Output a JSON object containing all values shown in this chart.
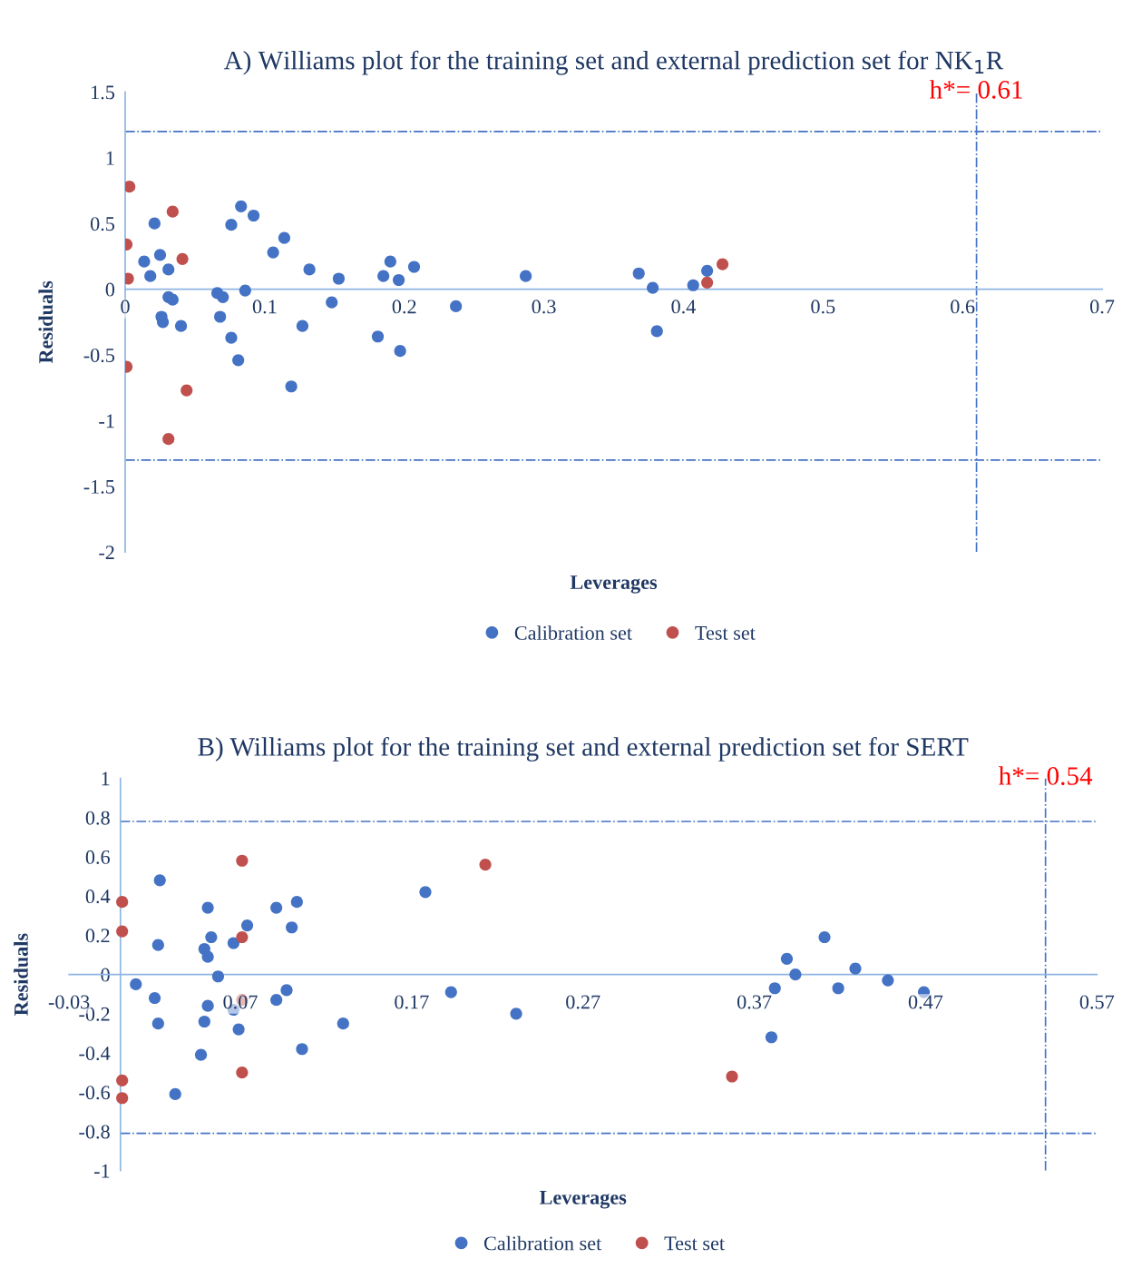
{
  "chart_data": [
    {
      "type": "scatter",
      "title": "A) Williams plot for the training set and external prediction set for NK$_{1}$R",
      "xlabel": "Leverages",
      "ylabel": "Residuals",
      "xlim": [
        0,
        0.7
      ],
      "xticks": [
        0,
        0.1,
        0.2,
        0.3,
        0.4,
        0.5,
        0.6,
        0.7
      ],
      "ylim": [
        -2,
        1.5
      ],
      "yticks": [
        -2,
        -1.5,
        -1,
        -0.5,
        0,
        0.5,
        1,
        1.5
      ],
      "grid": false,
      "legend": "bottom",
      "marker": "circle",
      "ref_lines": [
        {
          "axis": "y",
          "value": 1.2,
          "label": null,
          "color": "#4472c4",
          "line_style": "dashdot"
        },
        {
          "axis": "y",
          "value": -1.3,
          "label": null,
          "color": "#4472c4",
          "line_style": "dashdot"
        },
        {
          "axis": "x",
          "value": 0.61,
          "label": "h*= 0.61",
          "color": "#4472c4",
          "line_style": "dashdot"
        }
      ],
      "series": [
        {
          "name": "Calibration set",
          "color": "#4472c4",
          "x": [
            0.0136,
            0.018,
            0.021,
            0.025,
            0.031,
            0.031,
            0.034,
            0.026,
            0.027,
            0.04,
            0.066,
            0.07,
            0.068,
            0.076,
            0.083,
            0.092,
            0.086,
            0.076,
            0.081,
            0.106,
            0.114,
            0.127,
            0.119,
            0.132,
            0.148,
            0.153,
            0.181,
            0.185,
            0.19,
            0.196,
            0.197,
            0.207,
            0.237,
            0.287,
            0.368,
            0.378,
            0.381,
            0.407,
            0.417
          ],
          "values": [
            0.21,
            0.1,
            0.5,
            0.26,
            0.15,
            -0.06,
            -0.08,
            -0.21,
            -0.25,
            -0.28,
            -0.03,
            -0.06,
            -0.21,
            0.49,
            0.63,
            0.56,
            -0.01,
            -0.37,
            -0.54,
            0.28,
            0.39,
            -0.28,
            -0.74,
            0.15,
            -0.1,
            0.08,
            -0.36,
            0.1,
            0.21,
            0.07,
            -0.47,
            0.17,
            -0.13,
            0.1,
            0.12,
            0.01,
            -0.32,
            0.03,
            0.14
          ]
        },
        {
          "name": "Test set",
          "color": "#c0504d",
          "x": [
            0.003,
            0.001,
            0.002,
            0.001,
            0.034,
            0.041,
            0.044,
            0.031,
            0.417,
            0.428
          ],
          "values": [
            0.78,
            0.34,
            0.08,
            -0.59,
            0.59,
            0.23,
            -0.77,
            -1.14,
            0.05,
            0.19
          ]
        }
      ]
    },
    {
      "type": "scatter",
      "title": "B) Williams plot for the training set and external prediction set for SERT",
      "xlabel": "Leverages",
      "ylabel": "Residuals",
      "xlim": [
        -0.03,
        0.57
      ],
      "xticks": [
        -0.03,
        0.07,
        0.17,
        0.27,
        0.37,
        0.47,
        0.57
      ],
      "ylim": [
        -1,
        1
      ],
      "yticks": [
        -1,
        -0.8,
        -0.6,
        -0.4,
        -0.2,
        0,
        0.2,
        0.4,
        0.6,
        0.8,
        1
      ],
      "grid": false,
      "legend": "bottom",
      "marker": "circle",
      "ref_lines": [
        {
          "axis": "y",
          "value": 0.78,
          "label": null,
          "color": "#4472c4",
          "line_style": "dashdot"
        },
        {
          "axis": "y",
          "value": -0.81,
          "label": null,
          "color": "#4472c4",
          "line_style": "dashdot"
        },
        {
          "axis": "x",
          "value": 0.54,
          "label": "h*= 0.54",
          "color": "#4472c4",
          "line_style": "dashdot"
        }
      ],
      "series": [
        {
          "name": "Calibration set",
          "color": "#4472c4",
          "x": [
            0.009,
            0.023,
            0.022,
            0.02,
            0.022,
            0.051,
            0.053,
            0.049,
            0.051,
            0.057,
            0.051,
            0.049,
            0.047,
            0.032,
            0.074,
            0.066,
            0.066,
            0.069,
            0.091,
            0.103,
            0.1,
            0.097,
            0.091,
            0.106,
            0.13,
            0.178,
            0.193,
            0.231,
            0.382,
            0.38,
            0.389,
            0.394,
            0.411,
            0.419,
            0.429,
            0.448,
            0.469
          ],
          "values": [
            -0.05,
            0.48,
            0.15,
            -0.12,
            -0.25,
            0.34,
            0.19,
            0.13,
            0.09,
            -0.01,
            -0.16,
            -0.24,
            -0.41,
            -0.61,
            0.25,
            0.16,
            -0.18,
            -0.28,
            0.34,
            0.37,
            0.24,
            -0.08,
            -0.13,
            -0.38,
            -0.25,
            0.42,
            -0.09,
            -0.2,
            -0.07,
            -0.32,
            0.08,
            0.0,
            0.19,
            -0.07,
            0.03,
            -0.03,
            -0.09
          ]
        },
        {
          "name": "Test set",
          "color": "#c0504d",
          "x": [
            0.001,
            0.001,
            0.001,
            0.001,
            0.071,
            0.071,
            0.071,
            0.071,
            0.213,
            0.357
          ],
          "values": [
            0.37,
            0.22,
            -0.54,
            -0.63,
            0.58,
            0.19,
            -0.13,
            -0.5,
            0.56,
            -0.52
          ]
        }
      ]
    }
  ]
}
